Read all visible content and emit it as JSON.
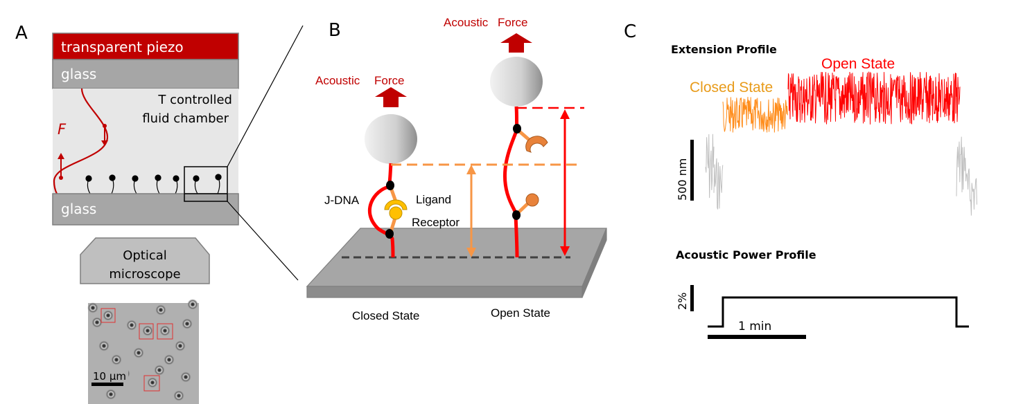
{
  "panels": {
    "a": "A",
    "b": "B",
    "c": "C"
  },
  "panel_a": {
    "piezo_label": "transparent piezo",
    "glass_top_label": "glass",
    "chamber_label_line1": "T controlled",
    "chamber_label_line2": "fluid chamber",
    "force_label": "F",
    "glass_bottom_label": "glass",
    "microscope_line1": "Optical",
    "microscope_line2": "microscope",
    "scalebar_label": "10 μm"
  },
  "panel_b": {
    "left_force_word1": "Acoustic",
    "left_force_word2": "Force",
    "right_force_word1": "Acoustic",
    "right_force_word2": "Force",
    "jdna_label": "J-DNA",
    "ligand_label": "Ligand",
    "receptor_label": "Receptor",
    "closed_state_label": "Closed State",
    "open_state_label": "Open State"
  },
  "panel_c": {
    "extension_title": "Extension Profile",
    "closed_state_label": "Closed State",
    "open_state_label": "Open State",
    "extension_scalebar_label": "500 nm",
    "power_title": "Acoustic Power Profile",
    "power_scalebar_label": "2%",
    "time_scalebar_label": "1 min"
  },
  "colors": {
    "piezo": "#c00000",
    "glass": "#a6a6a6",
    "chamber": "#e7e7e7",
    "dna_red": "#ff0000",
    "closed_orange": "#f79646",
    "ligand_yellow": "#ffc000",
    "open_red": "#ff0000",
    "closed_trace": "#ff8c1a",
    "gray_trace": "#bfbfbf"
  }
}
